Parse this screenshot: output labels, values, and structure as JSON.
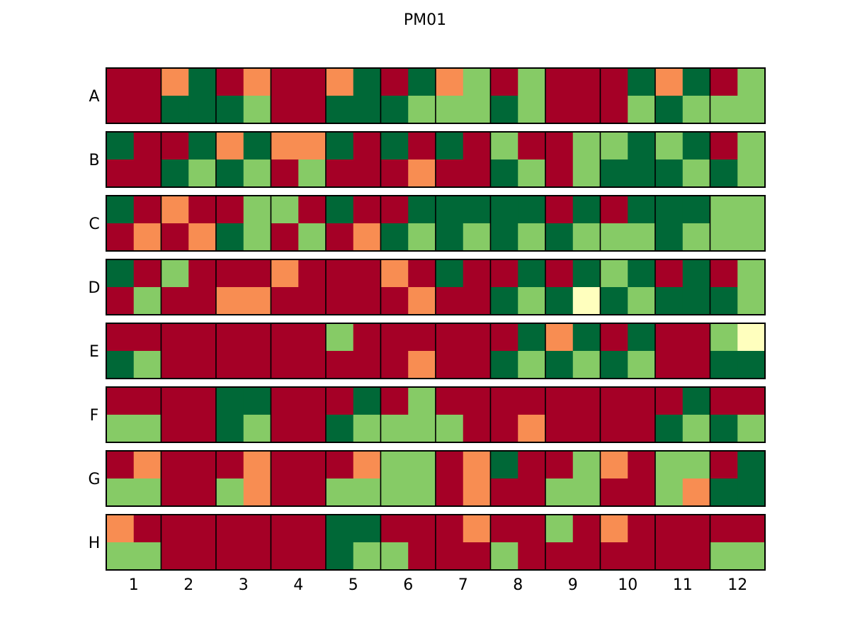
{
  "chart_data": {
    "type": "heatmap",
    "title": "PM01",
    "rows": [
      "A",
      "B",
      "C",
      "D",
      "E",
      "F",
      "G",
      "H"
    ],
    "columns": [
      "1",
      "2",
      "3",
      "4",
      "5",
      "6",
      "7",
      "8",
      "9",
      "10",
      "11",
      "12"
    ],
    "colors": {
      "R": "#a50026",
      "O": "#f88d52",
      "L": "#86cb66",
      "D": "#006837",
      "Y": "#ffffbe"
    },
    "grid": [
      [
        "RRRR",
        "ODDD",
        "RODL",
        "RRRR",
        "ODDD",
        "RDDL",
        "OLLL",
        "RLDL",
        "RRRR",
        "RDRL",
        "ODDL",
        "RLLL"
      ],
      [
        "DRRR",
        "RDDL",
        "ODDL",
        "OORL",
        "DRRR",
        "DRRO",
        "DRRR",
        "LRDL",
        "RLRL",
        "LDDD",
        "LDDL",
        "RLDL"
      ],
      [
        "DRRO",
        "ORRO",
        "RLDL",
        "LRRL",
        "DRRO",
        "RDDL",
        "DDDL",
        "DDDL",
        "RDDL",
        "RDLL",
        "DDDL",
        "LLLL"
      ],
      [
        "DRRL",
        "LRRR",
        "RROO",
        "ORRR",
        "RRRR",
        "ORRO",
        "DRRR",
        "RDDL",
        "RDDY",
        "LDDL",
        "RDDD",
        "RLDL"
      ],
      [
        "RRDL",
        "RRRR",
        "RRRR",
        "RRRR",
        "LRRR",
        "RRRO",
        "RRRR",
        "RDDL",
        "ODDL",
        "RDDL",
        "RRRR",
        "LYDD"
      ],
      [
        "RRLL",
        "RRRR",
        "DDDL",
        "RRRR",
        "RDDL",
        "RLLL",
        "RRLR",
        "RRRO",
        "RRRR",
        "RRRR",
        "RDDL",
        "RRDL"
      ],
      [
        "ROLL",
        "RRRR",
        "ROLO",
        "RRRR",
        "ROLL",
        "LLLL",
        "RORO",
        "DRRR",
        "RLLL",
        "ORRR",
        "LLLO",
        "RDDD"
      ],
      [
        "ORLL",
        "RRRR",
        "RRRR",
        "RRRR",
        "DDDL",
        "RRLR",
        "RORR",
        "RRLR",
        "LRRR",
        "ORRR",
        "RRRR",
        "RRLL"
      ]
    ]
  }
}
